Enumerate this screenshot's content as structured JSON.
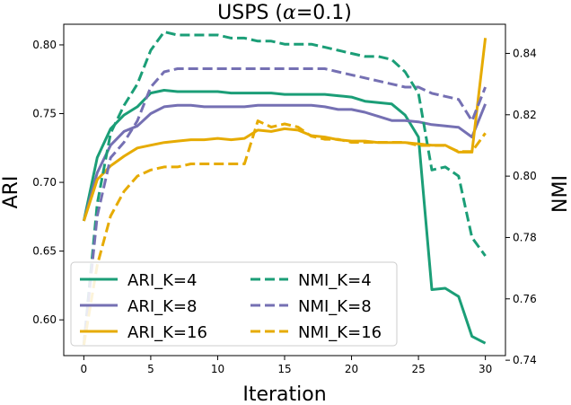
{
  "chart_data": {
    "type": "line",
    "title": "USPS (α=0.1)",
    "title_main": "USPS (",
    "title_symbol": "α",
    "title_rest": "=0.1)",
    "xlabel": "Iteration",
    "ylabel_left": "ARI",
    "ylabel_right": "NMI",
    "xlim": [
      -1.5,
      31.5
    ],
    "ylim_left": [
      0.574,
      0.815
    ],
    "ylim_right": [
      0.7415,
      0.8495
    ],
    "x_ticks": [
      0,
      5,
      10,
      15,
      20,
      25,
      30
    ],
    "y_ticks_left": [
      0.6,
      0.65,
      0.7,
      0.75,
      0.8
    ],
    "y_ticks_left_labels": [
      "0.60",
      "0.65",
      "0.70",
      "0.75",
      "0.80"
    ],
    "y_ticks_right": [
      0.74,
      0.76,
      0.78,
      0.8,
      0.82,
      0.84
    ],
    "y_ticks_right_labels": [
      "0.74",
      "0.76",
      "0.78",
      "0.80",
      "0.82",
      "0.84"
    ],
    "grid": false,
    "legend_position": "lower-left",
    "x": [
      0,
      1,
      2,
      3,
      4,
      5,
      6,
      7,
      8,
      9,
      10,
      11,
      12,
      13,
      14,
      15,
      16,
      17,
      18,
      19,
      20,
      21,
      22,
      23,
      24,
      25,
      26,
      27,
      28,
      29,
      30
    ],
    "series": [
      {
        "name": "ARI_K=4",
        "axis": "left",
        "style": "solid",
        "color": "#1b9e77",
        "values": [
          0.672,
          0.718,
          0.739,
          0.749,
          0.755,
          0.765,
          0.767,
          0.766,
          0.766,
          0.766,
          0.766,
          0.765,
          0.765,
          0.765,
          0.765,
          0.764,
          0.764,
          0.764,
          0.764,
          0.763,
          0.762,
          0.759,
          0.758,
          0.757,
          0.749,
          0.733,
          0.622,
          0.623,
          0.617,
          0.588,
          0.583
        ]
      },
      {
        "name": "ARI_K=8",
        "axis": "left",
        "style": "solid",
        "color": "#7570b3",
        "values": [
          0.672,
          0.707,
          0.727,
          0.737,
          0.741,
          0.75,
          0.755,
          0.756,
          0.756,
          0.755,
          0.755,
          0.755,
          0.755,
          0.756,
          0.756,
          0.756,
          0.756,
          0.756,
          0.755,
          0.753,
          0.753,
          0.751,
          0.748,
          0.745,
          0.745,
          0.744,
          0.742,
          0.741,
          0.74,
          0.733,
          0.757
        ]
      },
      {
        "name": "ARI_K=16",
        "axis": "left",
        "style": "solid",
        "color": "#e6ab02",
        "values": [
          0.672,
          0.702,
          0.712,
          0.719,
          0.725,
          0.727,
          0.729,
          0.73,
          0.731,
          0.731,
          0.732,
          0.731,
          0.732,
          0.738,
          0.737,
          0.739,
          0.738,
          0.734,
          0.733,
          0.731,
          0.73,
          0.73,
          0.729,
          0.729,
          0.729,
          0.728,
          0.727,
          0.727,
          0.722,
          0.722,
          0.805
        ]
      },
      {
        "name": "NMI_K=4",
        "axis": "right",
        "style": "dashed",
        "color": "#1b9e77",
        "values": [
          0.745,
          0.791,
          0.814,
          0.823,
          0.83,
          0.841,
          0.847,
          0.846,
          0.846,
          0.846,
          0.846,
          0.845,
          0.845,
          0.844,
          0.844,
          0.843,
          0.843,
          0.843,
          0.842,
          0.841,
          0.84,
          0.839,
          0.839,
          0.838,
          0.834,
          0.827,
          0.802,
          0.803,
          0.8,
          0.78,
          0.774
        ]
      },
      {
        "name": "NMI_K=8",
        "axis": "right",
        "style": "dashed",
        "color": "#7570b3",
        "values": [
          0.745,
          0.787,
          0.806,
          0.811,
          0.818,
          0.829,
          0.834,
          0.835,
          0.835,
          0.835,
          0.835,
          0.835,
          0.835,
          0.835,
          0.835,
          0.835,
          0.835,
          0.835,
          0.835,
          0.834,
          0.833,
          0.832,
          0.831,
          0.83,
          0.829,
          0.829,
          0.827,
          0.826,
          0.825,
          0.818,
          0.829
        ]
      },
      {
        "name": "NMI_K=16",
        "axis": "right",
        "style": "dashed",
        "color": "#e6ab02",
        "values": [
          0.745,
          0.771,
          0.787,
          0.795,
          0.8,
          0.802,
          0.803,
          0.803,
          0.804,
          0.804,
          0.804,
          0.804,
          0.804,
          0.818,
          0.816,
          0.817,
          0.816,
          0.813,
          0.812,
          0.812,
          0.811,
          0.811,
          0.811,
          0.811,
          0.811,
          0.81,
          0.81,
          0.81,
          0.808,
          0.808,
          0.814
        ]
      }
    ]
  }
}
